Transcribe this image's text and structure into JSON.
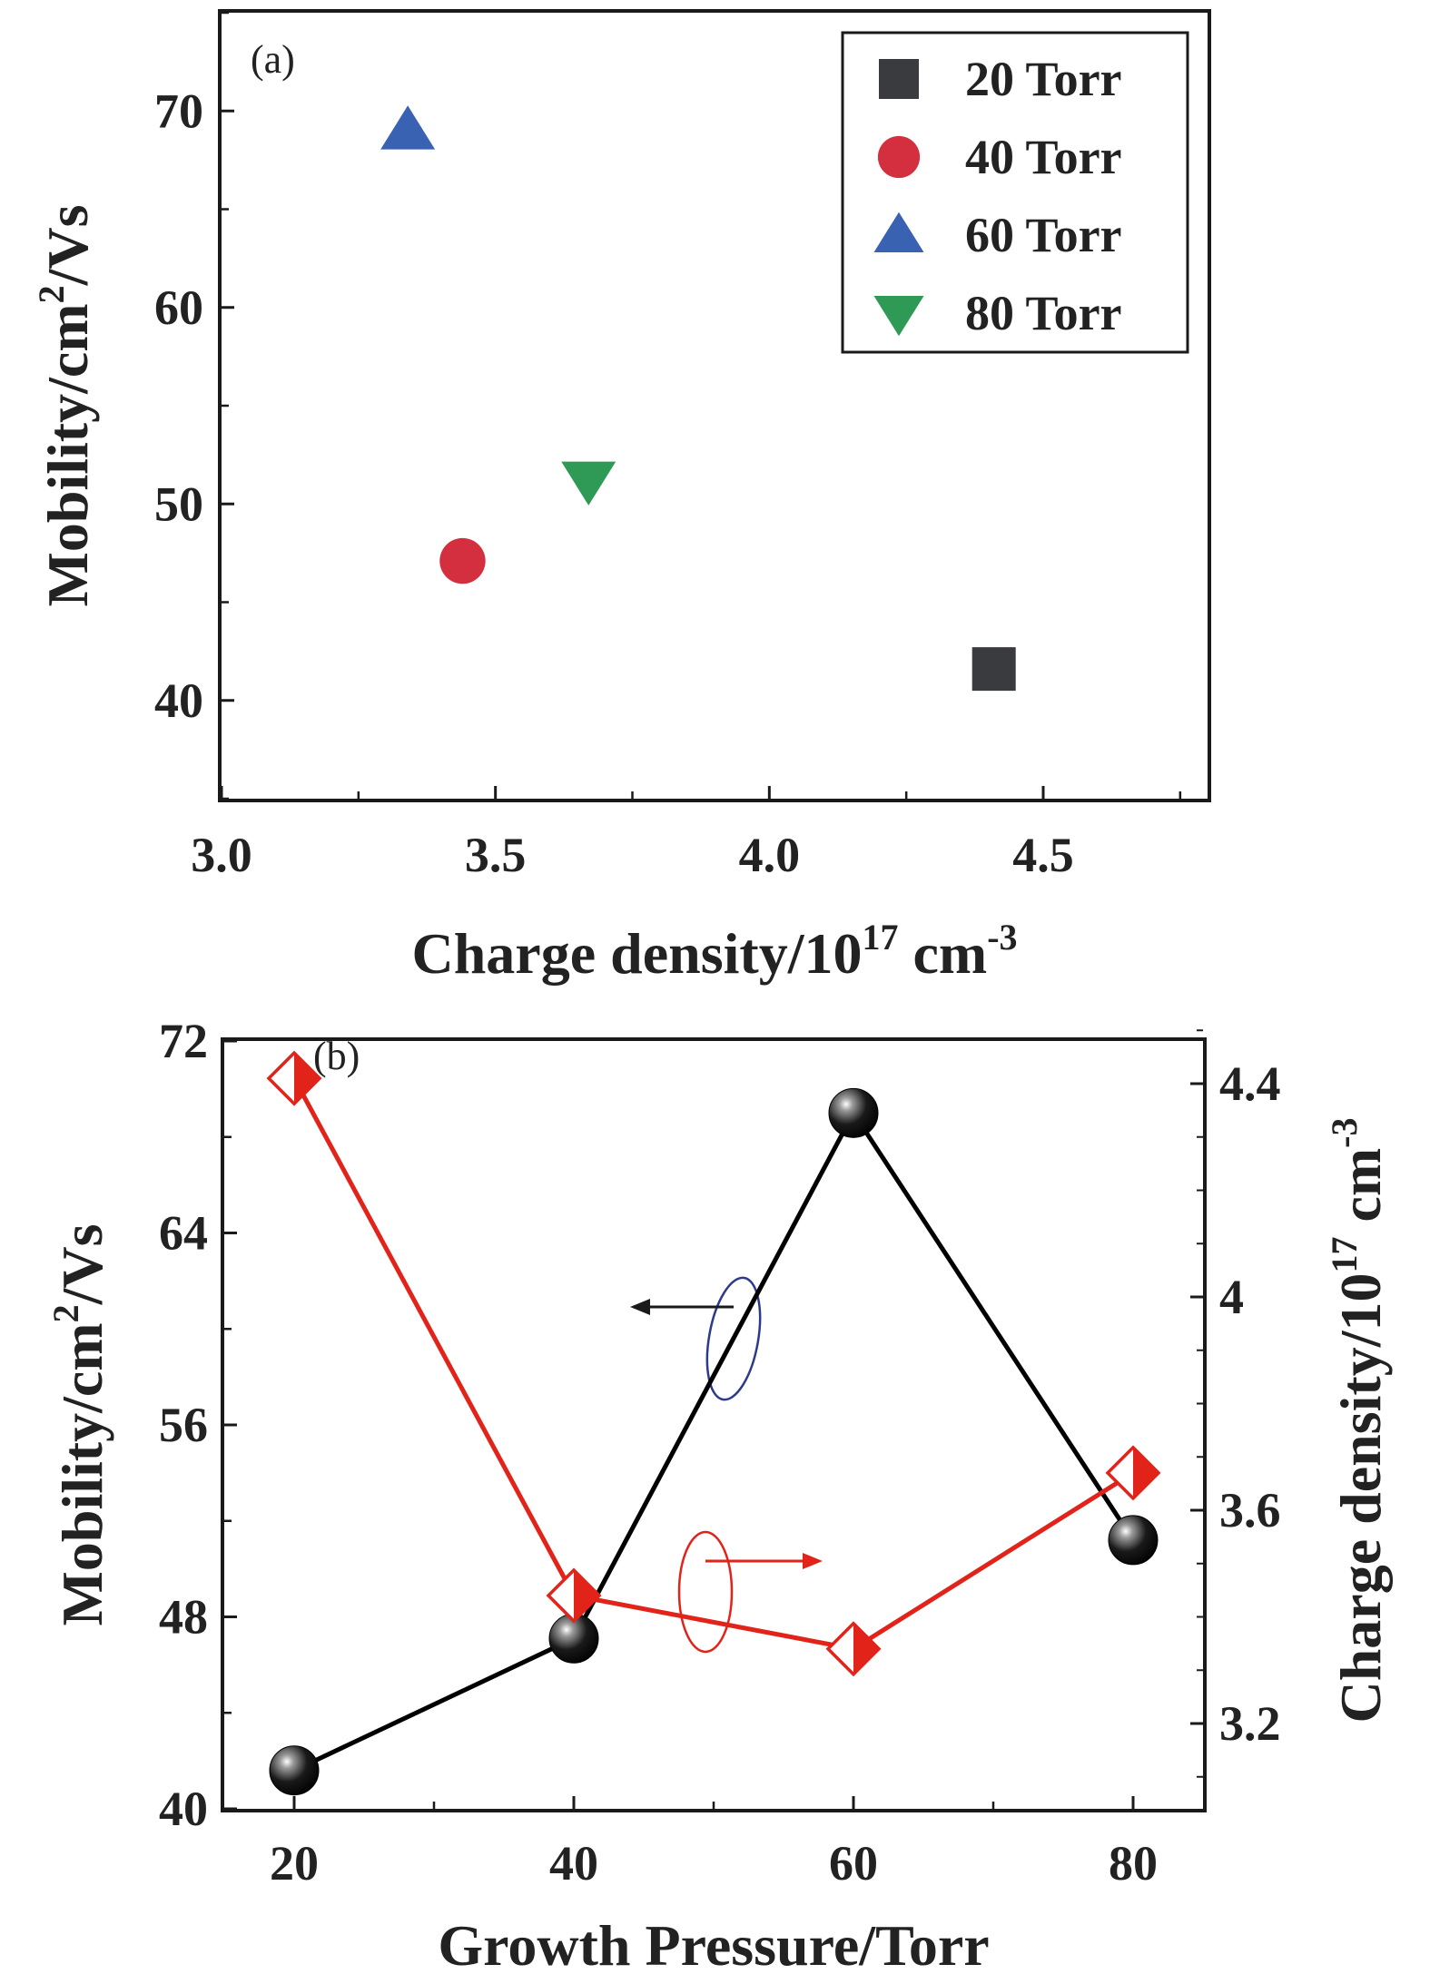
{
  "chart_data": [
    {
      "type": "scatter",
      "panel_label": "(a)",
      "xlabel_main": "Charge density/10",
      "xlabel_exp": "17",
      "xlabel_unit": " cm",
      "xlabel_unit_exp": "-3",
      "ylabel_main": "Mobility/cm",
      "ylabel_exp": "2",
      "ylabel_unit": "/Vs",
      "xlim": [
        3.0,
        4.8
      ],
      "ylim": [
        35,
        75
      ],
      "xticks": [
        3.0,
        3.5,
        4.0,
        4.5
      ],
      "xtick_labels": [
        "3.0",
        "3.5",
        "4.0",
        "4.5"
      ],
      "yticks": [
        40,
        50,
        60,
        70
      ],
      "ytick_labels": [
        "40",
        "50",
        "60",
        "70"
      ],
      "grid": false,
      "legend_position": "top-right",
      "series": [
        {
          "name": "20 Torr",
          "marker": "square",
          "color": "#3a3b3e",
          "x": [
            4.41
          ],
          "y": [
            41.6
          ]
        },
        {
          "name": "40 Torr",
          "marker": "circle",
          "color": "#d42f3f",
          "x": [
            3.44
          ],
          "y": [
            47.1
          ]
        },
        {
          "name": "60 Torr",
          "marker": "triangle-up",
          "color": "#3a62b3",
          "x": [
            3.34
          ],
          "y": [
            69.0
          ]
        },
        {
          "name": "80 Torr",
          "marker": "triangle-down",
          "color": "#2e9a55",
          "x": [
            3.67
          ],
          "y": [
            51.2
          ]
        }
      ]
    },
    {
      "type": "line",
      "panel_label": "(b)",
      "xlabel": "Growth Pressure/Torr",
      "ylabel_main": "Mobility/cm",
      "ylabel_exp": "2",
      "ylabel_unit": "/Vs",
      "y2label_main": "Charge density/10",
      "y2label_exp": "17",
      "y2label_unit": " cm",
      "y2label_unit_exp": "-3",
      "xlim": [
        15,
        85
      ],
      "ylim": [
        40,
        72
      ],
      "y2lim": [
        3.04,
        4.48
      ],
      "xticks": [
        20,
        40,
        60,
        80
      ],
      "xtick_labels": [
        "20",
        "40",
        "60",
        "80"
      ],
      "yticks": [
        40,
        48,
        56,
        64,
        72
      ],
      "ytick_labels": [
        "40",
        "48",
        "56",
        "64",
        "72"
      ],
      "y2ticks": [
        3.2,
        3.6,
        4.0,
        4.4
      ],
      "y2tick_labels": [
        "3.2",
        "3.6",
        "4",
        "4.4"
      ],
      "grid": false,
      "x": [
        20,
        40,
        60,
        80
      ],
      "series": [
        {
          "axis": "left",
          "marker": "sphere",
          "color": "#000000",
          "values": [
            41.6,
            47.1,
            69.0,
            51.2
          ]
        },
        {
          "axis": "right",
          "marker": "half-filled-diamond",
          "color": "#e2231a",
          "values": [
            4.41,
            3.44,
            3.34,
            3.67
          ]
        }
      ],
      "annotations": [
        {
          "type": "ellipse-arrow",
          "points_to": "left",
          "color": "#2b3a8c"
        },
        {
          "type": "ellipse-arrow",
          "points_to": "right",
          "color": "#e2231a"
        }
      ]
    }
  ]
}
